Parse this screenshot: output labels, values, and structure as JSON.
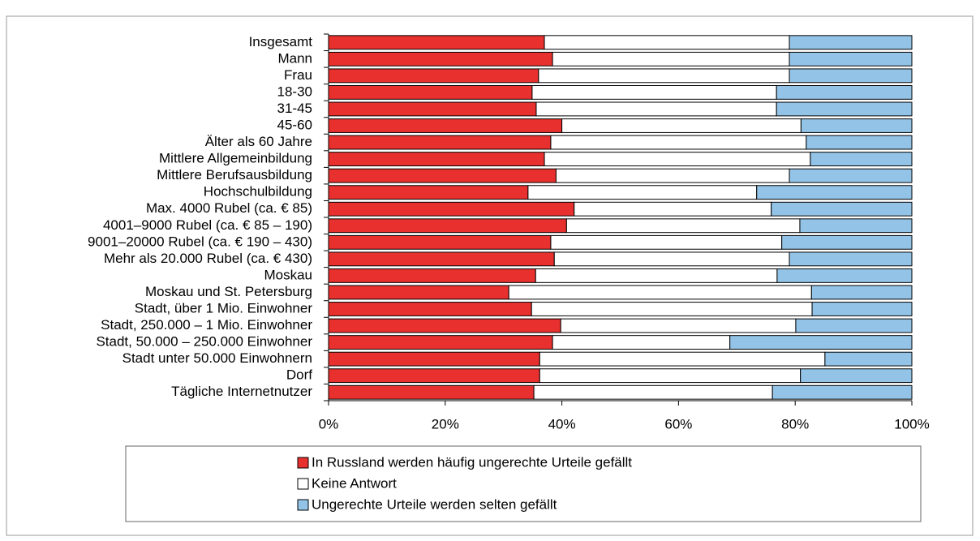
{
  "chart_data": {
    "type": "stacked_barh",
    "categories": [
      "Insgesamt",
      "Mann",
      "Frau",
      "18-30",
      "31-45",
      "45-60",
      "Älter als 60 Jahre",
      "Mittlere Allgemeinbildung",
      "Mittlere Berufsausbildung",
      "Hochschulbildung",
      "Max. 4000 Rubel (ca. € 85)",
      "4001–9000 Rubel (ca. € 85 – 190)",
      "9001–20000 Rubel (ca. € 190 – 430)",
      "Mehr als 20.000 Rubel (ca. € 430)",
      "Moskau",
      "Moskau und St. Petersburg",
      "Stadt, über 1 Mio. Einwohner",
      "Stadt, 250.000 – 1 Mio. Einwohner",
      "Stadt, 50.000 – 250.000 Einwohner",
      "Stadt unter 50.000 Einwohnern",
      "Dorf",
      "Tägliche Internetnutzer"
    ],
    "series": [
      {
        "name": "In Russland werden häufig ungerechte Urteile gefällt",
        "color": "#e8302e",
        "values": [
          37,
          38.4,
          36,
          34.9,
          35.6,
          40,
          38.1,
          37,
          39,
          34.2,
          42.1,
          40.8,
          38.1,
          38.7,
          35.5,
          30.9,
          34.8,
          39.8,
          38.4,
          36.2,
          36.2,
          35.2
        ]
      },
      {
        "name": "Keine Antwort",
        "color": "#ffffff",
        "values": [
          42,
          40.6,
          43,
          41.9,
          41.2,
          41,
          43.8,
          45.6,
          40,
          39.2,
          33.8,
          40,
          39.6,
          40.3,
          41.4,
          51.9,
          48.1,
          40.3,
          30.4,
          48.9,
          44.7,
          40.9
        ]
      },
      {
        "name": "Ungerechte Urteile werden selten gefällt",
        "color": "#93c4e8",
        "values": [
          21,
          21,
          21,
          23.2,
          23.2,
          19,
          18.1,
          17.4,
          21,
          26.6,
          24.1,
          19.2,
          22.3,
          21,
          23.1,
          17.2,
          17.1,
          19.9,
          31.2,
          14.9,
          19.1,
          23.9
        ]
      }
    ],
    "xlim": [
      0,
      100
    ],
    "xticks": [
      {
        "value": 0,
        "label": "0%"
      },
      {
        "value": 20,
        "label": "20%"
      },
      {
        "value": 40,
        "label": "40%"
      },
      {
        "value": 60,
        "label": "60%"
      },
      {
        "value": 80,
        "label": "80%"
      },
      {
        "value": 100,
        "label": "100%"
      }
    ]
  }
}
